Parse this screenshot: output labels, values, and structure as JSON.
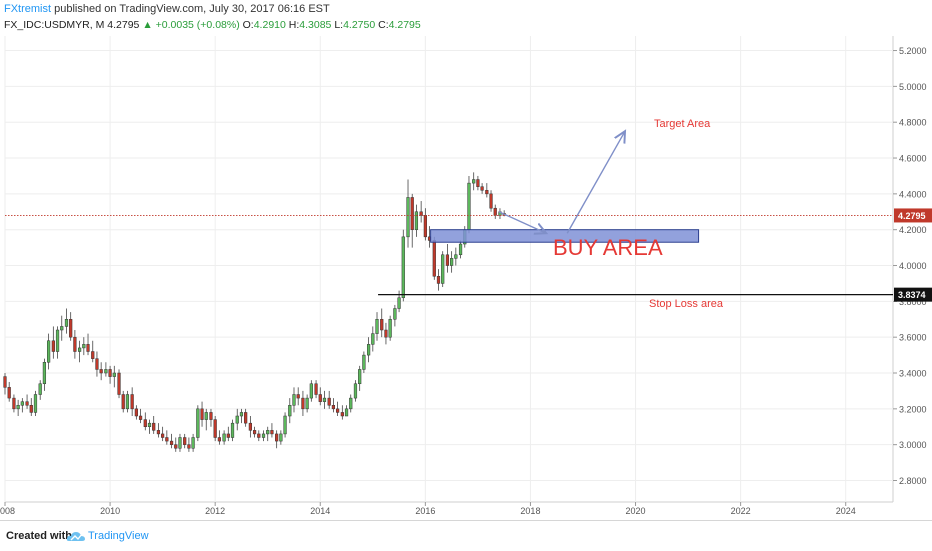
{
  "header": {
    "author": "FXtremist",
    "published": "published on TradingView.com, July 30, 2017 06:16 EST",
    "symbol": "FX_IDC:USDMYR, M",
    "last": "4.2795",
    "arrow": "▲",
    "change": "+0.0035 (+0.08%)",
    "o_label": "O:",
    "o_value": "4.2910",
    "h_label": "H:",
    "h_value": "4.3085",
    "l_label": "L:",
    "l_value": "4.2750",
    "c_label": "C:",
    "c_value": "4.2795"
  },
  "footer": {
    "created": "Created with",
    "brand": "TradingView"
  },
  "colors": {
    "up": "#2e7d32",
    "up_body": "#5cb85c",
    "down_body": "#c0392b",
    "price_line": "#c0392b",
    "zone_fill": "#7f91d6",
    "zone_border": "#2b3f8f",
    "arrow": "#7f8fc8",
    "annot_red": "#e53935",
    "grid": "#eeeeee"
  },
  "chart_data": {
    "type": "candlestick",
    "timeframe": "Monthly",
    "ylim": [
      2.68,
      5.27
    ],
    "yticks": [
      "5.2000",
      "5.0000",
      "4.8000",
      "4.6000",
      "4.4000",
      "4.2000",
      "4.0000",
      "3.8000",
      "3.6000",
      "3.4000",
      "3.2000",
      "3.0000",
      "2.8000"
    ],
    "xlim": [
      2008.0,
      2024.9
    ],
    "xticks": [
      "2008",
      "2010",
      "2012",
      "2014",
      "2016",
      "2018",
      "2020",
      "2022",
      "2024"
    ],
    "candles": [
      [
        2008.0,
        3.38,
        3.4,
        3.28,
        3.32
      ],
      [
        2008.08,
        3.32,
        3.35,
        3.24,
        3.26
      ],
      [
        2008.17,
        3.26,
        3.28,
        3.18,
        3.2
      ],
      [
        2008.25,
        3.2,
        3.25,
        3.16,
        3.22
      ],
      [
        2008.33,
        3.22,
        3.26,
        3.18,
        3.24
      ],
      [
        2008.42,
        3.24,
        3.28,
        3.2,
        3.22
      ],
      [
        2008.5,
        3.22,
        3.26,
        3.16,
        3.18
      ],
      [
        2008.58,
        3.18,
        3.3,
        3.16,
        3.28
      ],
      [
        2008.67,
        3.28,
        3.36,
        3.25,
        3.34
      ],
      [
        2008.75,
        3.34,
        3.48,
        3.3,
        3.46
      ],
      [
        2008.83,
        3.46,
        3.62,
        3.42,
        3.58
      ],
      [
        2008.92,
        3.58,
        3.66,
        3.48,
        3.52
      ],
      [
        2009.0,
        3.52,
        3.66,
        3.48,
        3.64
      ],
      [
        2009.08,
        3.64,
        3.72,
        3.58,
        3.66
      ],
      [
        2009.17,
        3.66,
        3.76,
        3.62,
        3.7
      ],
      [
        2009.25,
        3.7,
        3.74,
        3.58,
        3.6
      ],
      [
        2009.33,
        3.6,
        3.64,
        3.48,
        3.52
      ],
      [
        2009.42,
        3.52,
        3.58,
        3.46,
        3.54
      ],
      [
        2009.5,
        3.54,
        3.6,
        3.5,
        3.56
      ],
      [
        2009.58,
        3.56,
        3.62,
        3.5,
        3.52
      ],
      [
        2009.67,
        3.52,
        3.58,
        3.46,
        3.48
      ],
      [
        2009.75,
        3.48,
        3.52,
        3.38,
        3.42
      ],
      [
        2009.83,
        3.42,
        3.46,
        3.36,
        3.4
      ],
      [
        2009.92,
        3.4,
        3.46,
        3.38,
        3.42
      ],
      [
        2010.0,
        3.42,
        3.44,
        3.34,
        3.38
      ],
      [
        2010.08,
        3.38,
        3.44,
        3.32,
        3.4
      ],
      [
        2010.17,
        3.4,
        3.42,
        3.26,
        3.28
      ],
      [
        2010.25,
        3.28,
        3.3,
        3.18,
        3.2
      ],
      [
        2010.33,
        3.2,
        3.3,
        3.18,
        3.28
      ],
      [
        2010.42,
        3.28,
        3.32,
        3.16,
        3.2
      ],
      [
        2010.5,
        3.2,
        3.22,
        3.14,
        3.16
      ],
      [
        2010.58,
        3.16,
        3.2,
        3.12,
        3.14
      ],
      [
        2010.67,
        3.14,
        3.18,
        3.08,
        3.1
      ],
      [
        2010.75,
        3.1,
        3.14,
        3.06,
        3.12
      ],
      [
        2010.83,
        3.12,
        3.16,
        3.06,
        3.08
      ],
      [
        2010.92,
        3.08,
        3.12,
        3.04,
        3.06
      ],
      [
        2011.0,
        3.06,
        3.1,
        3.02,
        3.04
      ],
      [
        2011.08,
        3.04,
        3.08,
        3.0,
        3.02
      ],
      [
        2011.17,
        3.02,
        3.06,
        2.98,
        3.0
      ],
      [
        2011.25,
        3.0,
        3.04,
        2.96,
        2.98
      ],
      [
        2011.33,
        2.98,
        3.06,
        2.96,
        3.04
      ],
      [
        2011.42,
        3.04,
        3.06,
        2.98,
        3.0
      ],
      [
        2011.5,
        3.0,
        3.04,
        2.96,
        2.98
      ],
      [
        2011.58,
        2.98,
        3.06,
        2.96,
        3.04
      ],
      [
        2011.67,
        3.04,
        3.22,
        3.02,
        3.2
      ],
      [
        2011.75,
        3.2,
        3.24,
        3.1,
        3.14
      ],
      [
        2011.83,
        3.14,
        3.2,
        3.08,
        3.18
      ],
      [
        2011.92,
        3.18,
        3.2,
        3.1,
        3.14
      ],
      [
        2012.0,
        3.14,
        3.16,
        3.02,
        3.04
      ],
      [
        2012.08,
        3.04,
        3.08,
        3.0,
        3.02
      ],
      [
        2012.17,
        3.02,
        3.08,
        3.0,
        3.06
      ],
      [
        2012.25,
        3.06,
        3.1,
        3.02,
        3.04
      ],
      [
        2012.33,
        3.04,
        3.14,
        3.02,
        3.12
      ],
      [
        2012.42,
        3.12,
        3.2,
        3.08,
        3.16
      ],
      [
        2012.5,
        3.16,
        3.2,
        3.12,
        3.18
      ],
      [
        2012.58,
        3.18,
        3.2,
        3.1,
        3.12
      ],
      [
        2012.67,
        3.12,
        3.16,
        3.04,
        3.08
      ],
      [
        2012.75,
        3.08,
        3.1,
        3.04,
        3.06
      ],
      [
        2012.83,
        3.06,
        3.08,
        3.02,
        3.04
      ],
      [
        2012.92,
        3.04,
        3.08,
        3.02,
        3.06
      ],
      [
        2013.0,
        3.06,
        3.1,
        3.02,
        3.08
      ],
      [
        2013.08,
        3.08,
        3.12,
        3.04,
        3.06
      ],
      [
        2013.17,
        3.06,
        3.08,
        2.98,
        3.02
      ],
      [
        2013.25,
        3.02,
        3.08,
        3.0,
        3.06
      ],
      [
        2013.33,
        3.06,
        3.18,
        3.04,
        3.16
      ],
      [
        2013.42,
        3.16,
        3.26,
        3.12,
        3.22
      ],
      [
        2013.5,
        3.22,
        3.32,
        3.18,
        3.28
      ],
      [
        2013.58,
        3.28,
        3.32,
        3.22,
        3.26
      ],
      [
        2013.67,
        3.26,
        3.3,
        3.16,
        3.2
      ],
      [
        2013.75,
        3.2,
        3.28,
        3.18,
        3.26
      ],
      [
        2013.83,
        3.26,
        3.36,
        3.24,
        3.34
      ],
      [
        2013.92,
        3.34,
        3.36,
        3.26,
        3.28
      ],
      [
        2014.0,
        3.28,
        3.32,
        3.22,
        3.24
      ],
      [
        2014.08,
        3.24,
        3.3,
        3.2,
        3.26
      ],
      [
        2014.17,
        3.26,
        3.3,
        3.2,
        3.22
      ],
      [
        2014.25,
        3.22,
        3.26,
        3.18,
        3.2
      ],
      [
        2014.33,
        3.2,
        3.24,
        3.16,
        3.18
      ],
      [
        2014.42,
        3.18,
        3.22,
        3.14,
        3.16
      ],
      [
        2014.5,
        3.16,
        3.22,
        3.16,
        3.2
      ],
      [
        2014.58,
        3.2,
        3.28,
        3.18,
        3.26
      ],
      [
        2014.67,
        3.26,
        3.36,
        3.24,
        3.34
      ],
      [
        2014.75,
        3.34,
        3.44,
        3.3,
        3.42
      ],
      [
        2014.83,
        3.42,
        3.52,
        3.4,
        3.5
      ],
      [
        2014.92,
        3.5,
        3.6,
        3.46,
        3.56
      ],
      [
        2015.0,
        3.56,
        3.66,
        3.52,
        3.62
      ],
      [
        2015.08,
        3.62,
        3.74,
        3.58,
        3.7
      ],
      [
        2015.17,
        3.7,
        3.76,
        3.6,
        3.64
      ],
      [
        2015.25,
        3.64,
        3.68,
        3.56,
        3.6
      ],
      [
        2015.33,
        3.6,
        3.72,
        3.58,
        3.7
      ],
      [
        2015.42,
        3.7,
        3.78,
        3.66,
        3.76
      ],
      [
        2015.5,
        3.76,
        3.86,
        3.74,
        3.82
      ],
      [
        2015.58,
        3.82,
        4.2,
        3.8,
        4.16
      ],
      [
        2015.67,
        4.16,
        4.48,
        4.1,
        4.38
      ],
      [
        2015.75,
        4.38,
        4.4,
        4.1,
        4.2
      ],
      [
        2015.83,
        4.2,
        4.34,
        4.16,
        4.3
      ],
      [
        2015.92,
        4.3,
        4.36,
        4.24,
        4.28
      ],
      [
        2016.0,
        4.28,
        4.32,
        4.14,
        4.16
      ],
      [
        2016.08,
        4.16,
        4.22,
        4.1,
        4.14
      ],
      [
        2016.17,
        4.14,
        4.16,
        3.92,
        3.94
      ],
      [
        2016.25,
        3.94,
        3.98,
        3.86,
        3.9
      ],
      [
        2016.33,
        3.9,
        4.08,
        3.88,
        4.06
      ],
      [
        2016.42,
        4.06,
        4.12,
        3.96,
        4.0
      ],
      [
        2016.5,
        4.0,
        4.08,
        3.96,
        4.04
      ],
      [
        2016.58,
        4.04,
        4.1,
        4.0,
        4.06
      ],
      [
        2016.67,
        4.06,
        4.14,
        4.04,
        4.12
      ],
      [
        2016.75,
        4.12,
        4.22,
        4.1,
        4.2
      ],
      [
        2016.83,
        4.2,
        4.5,
        4.18,
        4.46
      ],
      [
        2016.92,
        4.46,
        4.52,
        4.42,
        4.48
      ],
      [
        2017.0,
        4.48,
        4.5,
        4.42,
        4.44
      ],
      [
        2017.08,
        4.44,
        4.46,
        4.4,
        4.42
      ],
      [
        2017.17,
        4.42,
        4.46,
        4.38,
        4.4
      ],
      [
        2017.25,
        4.4,
        4.42,
        4.3,
        4.32
      ],
      [
        2017.33,
        4.32,
        4.34,
        4.26,
        4.28
      ],
      [
        2017.42,
        4.28,
        4.32,
        4.26,
        4.3
      ],
      [
        2017.5,
        4.291,
        4.3085,
        4.275,
        4.2795
      ]
    ],
    "last_price": "4.2795",
    "stop_loss_level": "3.8374",
    "annotations": {
      "target": "Target Area",
      "buy": "BUY AREA",
      "stop": "Stop Loss area"
    },
    "buy_zone": {
      "x_from": 2016.1,
      "x_to": 2021.2,
      "y_low": 4.13,
      "y_high": 4.2
    },
    "stop_line_x_from": 2015.1,
    "arrows": [
      {
        "from": [
          2017.4,
          4.3
        ],
        "to": [
          2018.3,
          4.18
        ]
      },
      {
        "from": [
          2018.7,
          4.18
        ],
        "to": [
          2019.8,
          4.75
        ]
      }
    ]
  }
}
